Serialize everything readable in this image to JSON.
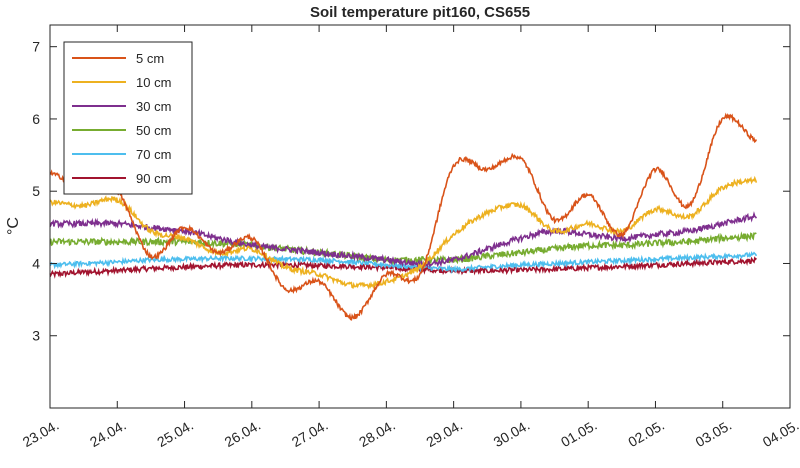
{
  "chart_data": {
    "type": "line",
    "title": "Soil temperature pit160, CS655",
    "xlabel": "",
    "ylabel": "°C",
    "x_unit": "date",
    "x_ticks": [
      "23.04.",
      "24.04.",
      "25.04.",
      "26.04.",
      "27.04.",
      "28.04.",
      "29.04.",
      "30.04.",
      "01.05.",
      "02.05.",
      "03.05.",
      "04.05."
    ],
    "xlim": [
      "23.04.",
      "04.05."
    ],
    "y_ticks": [
      "3",
      "4",
      "5",
      "6",
      "7"
    ],
    "ylim": [
      2.0,
      7.3
    ],
    "grid": false,
    "legend_position": "top-left",
    "x_days": [
      0,
      0.5,
      1,
      1.5,
      2,
      2.5,
      3,
      3.5,
      4,
      4.5,
      5,
      5.5,
      6,
      6.5,
      7,
      7.5,
      8,
      8.5,
      9,
      9.5,
      10,
      10.5
    ],
    "series": [
      {
        "name": "5 cm",
        "color": "#D95319",
        "values": [
          5.25,
          5.05,
          5.0,
          4.1,
          4.5,
          4.15,
          4.35,
          3.65,
          3.75,
          3.25,
          3.85,
          3.85,
          5.35,
          5.3,
          5.45,
          4.6,
          4.95,
          4.4,
          5.3,
          4.8,
          6.0,
          5.7
        ]
      },
      {
        "name": "10 cm",
        "color": "#EDB120",
        "values": [
          4.85,
          4.8,
          4.88,
          4.45,
          4.35,
          4.15,
          4.2,
          3.95,
          3.85,
          3.7,
          3.75,
          3.95,
          4.4,
          4.7,
          4.8,
          4.45,
          4.55,
          4.45,
          4.75,
          4.65,
          5.05,
          5.15
        ]
      },
      {
        "name": "30 cm",
        "color": "#7E2F8E",
        "values": [
          4.55,
          4.55,
          4.55,
          4.5,
          4.45,
          4.35,
          4.25,
          4.2,
          4.15,
          4.1,
          4.05,
          4.0,
          4.05,
          4.2,
          4.35,
          4.45,
          4.4,
          4.35,
          4.4,
          4.45,
          4.55,
          4.65
        ]
      },
      {
        "name": "50 cm",
        "color": "#77AC30",
        "values": [
          4.3,
          4.3,
          4.3,
          4.3,
          4.3,
          4.28,
          4.25,
          4.2,
          4.15,
          4.1,
          4.05,
          4.05,
          4.05,
          4.1,
          4.15,
          4.2,
          4.25,
          4.25,
          4.28,
          4.3,
          4.35,
          4.38
        ]
      },
      {
        "name": "70 cm",
        "color": "#4DBEEE",
        "values": [
          3.98,
          4.0,
          4.02,
          4.05,
          4.06,
          4.07,
          4.07,
          4.06,
          4.05,
          4.02,
          3.98,
          3.95,
          3.92,
          3.95,
          3.98,
          4.0,
          4.02,
          4.04,
          4.06,
          4.08,
          4.1,
          4.12
        ]
      },
      {
        "name": "90 cm",
        "color": "#A2142F",
        "values": [
          3.85,
          3.88,
          3.9,
          3.93,
          3.95,
          3.97,
          3.98,
          3.98,
          3.97,
          3.96,
          3.94,
          3.92,
          3.9,
          3.9,
          3.91,
          3.92,
          3.94,
          3.96,
          3.98,
          4.0,
          4.02,
          4.04
        ]
      }
    ]
  }
}
